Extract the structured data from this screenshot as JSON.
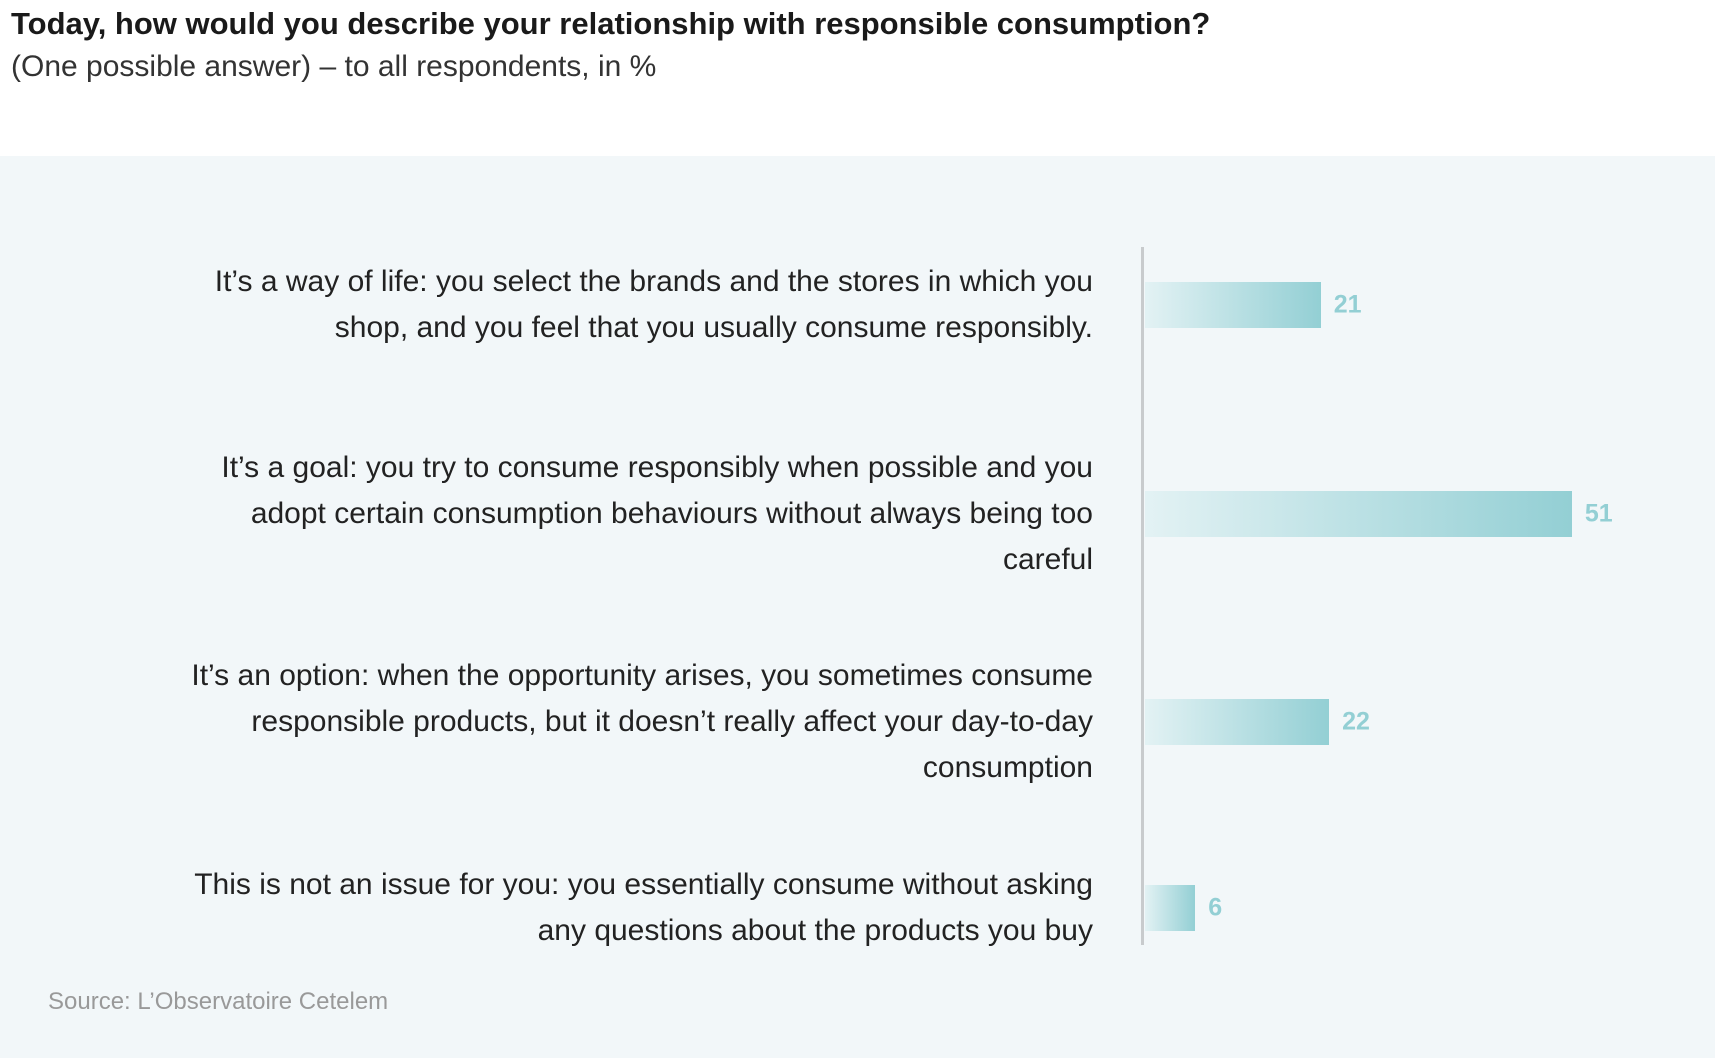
{
  "chart_data": {
    "type": "bar",
    "title": "Today, how would you describe your relationship with responsible consumption?",
    "subtitle": "(One possible answer) – to all respondents, in %",
    "categories": [
      "It’s a way of life: you select the brands and the stores in which you shop, and you feel that you usually consume responsibly.",
      "It’s a goal: you try to consume responsibly when possible and you adopt certain consumption behaviours without always being too careful",
      "It’s an option: when the opportunity arises, you sometimes consume responsible products, but it doesn’t really affect your day-to-day consumption",
      "This is not an issue for you: you essentially consume without asking any questions about the products you buy"
    ],
    "values": [
      21,
      51,
      22,
      6
    ],
    "color": "#93cfd4",
    "source": "Source: L’Observatoire Cetelem"
  }
}
